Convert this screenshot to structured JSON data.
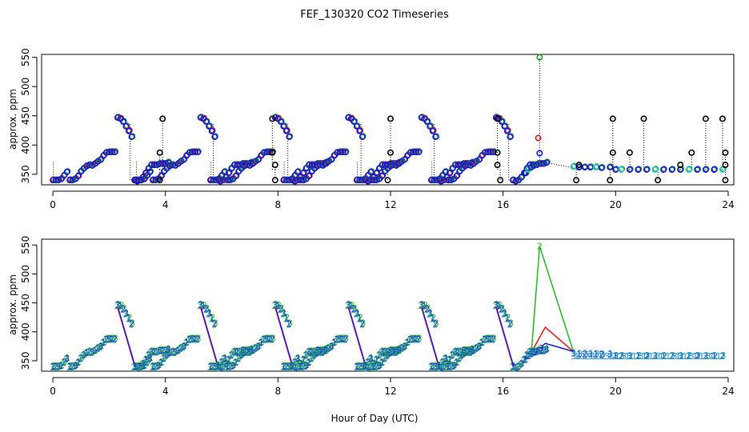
{
  "chart_data": [
    {
      "type": "scatter",
      "title": "FEF_130320  CO2 Timeseries",
      "ylabel": "approx. ppm",
      "xlim": [
        -0.4,
        24.2
      ],
      "ylim": [
        332,
        555
      ],
      "xticks": [
        "0",
        "4",
        "8",
        "12",
        "16",
        "20",
        "24"
      ],
      "yticks": [
        "350",
        "400",
        "450",
        "500",
        "550"
      ],
      "colors": {
        "frame": "#000000",
        "points": "#1414d8",
        "points_alt": "#c81e1e",
        "points_green": "#2a9a2a",
        "points_cyan": "#22cccc",
        "spikes": "#000000"
      },
      "cycle_points": [
        [
          0,
          340
        ],
        [
          0.1,
          340
        ],
        [
          0.2,
          340
        ],
        [
          0.3,
          342
        ],
        [
          0.4,
          348
        ],
        [
          0.5,
          354
        ],
        [
          0.6,
          340
        ],
        [
          0.7,
          340
        ],
        [
          0.8,
          342
        ],
        [
          0.9,
          347
        ],
        [
          1.0,
          355
        ],
        [
          1.1,
          360
        ],
        [
          1.2,
          364
        ],
        [
          1.3,
          366
        ],
        [
          1.4,
          365
        ],
        [
          1.5,
          368
        ],
        [
          1.6,
          372
        ],
        [
          1.7,
          375
        ],
        [
          1.8,
          382
        ],
        [
          1.9,
          387
        ],
        [
          2.0,
          388
        ],
        [
          2.1,
          388
        ],
        [
          2.2,
          388
        ],
        [
          2.3,
          447
        ],
        [
          2.4,
          445
        ],
        [
          2.5,
          440
        ],
        [
          2.6,
          432
        ],
        [
          2.7,
          424
        ],
        [
          2.8,
          414
        ],
        [
          2.9,
          340
        ],
        [
          3.0,
          338
        ],
        [
          3.1,
          340
        ],
        [
          3.2,
          345
        ],
        [
          3.3,
          352
        ],
        [
          3.4,
          360
        ],
        [
          3.5,
          366
        ],
        [
          3.6,
          366
        ],
        [
          3.7,
          366
        ],
        [
          3.8,
          368
        ],
        [
          3.9,
          368
        ],
        [
          4.0,
          368
        ],
        [
          4.1,
          370
        ]
      ],
      "cycle_offsets": [
        0,
        2.95,
        5.6,
        8.2,
        10.8,
        13.45
      ],
      "tail_points": [
        [
          16.8,
          352
        ],
        [
          16.9,
          358
        ],
        [
          17.0,
          362
        ],
        [
          17.1,
          365
        ],
        [
          17.2,
          366
        ],
        [
          18.5,
          363
        ],
        [
          18.7,
          362
        ],
        [
          18.9,
          362
        ],
        [
          19.1,
          362
        ],
        [
          19.3,
          362
        ],
        [
          19.5,
          361
        ],
        [
          19.8,
          362
        ],
        [
          20.0,
          358
        ],
        [
          20.2,
          358
        ],
        [
          20.5,
          358
        ],
        [
          20.8,
          358
        ],
        [
          21.1,
          358
        ],
        [
          21.4,
          358
        ],
        [
          21.7,
          358
        ],
        [
          22.0,
          358
        ],
        [
          22.3,
          358
        ],
        [
          22.6,
          358
        ],
        [
          22.9,
          358
        ],
        [
          23.2,
          358
        ],
        [
          23.5,
          358
        ],
        [
          23.8,
          358
        ]
      ],
      "spike_points": [
        [
          3.9,
          445
        ],
        [
          3.8,
          387
        ],
        [
          3.8,
          340
        ],
        [
          7.8,
          445
        ],
        [
          7.8,
          387
        ],
        [
          7.9,
          366
        ],
        [
          7.9,
          340
        ],
        [
          12.0,
          445
        ],
        [
          12.0,
          387
        ],
        [
          11.9,
          340
        ],
        [
          15.8,
          445
        ],
        [
          15.8,
          387
        ],
        [
          15.8,
          366
        ],
        [
          15.9,
          340
        ],
        [
          18.7,
          366
        ],
        [
          18.6,
          340
        ],
        [
          19.9,
          445
        ],
        [
          19.9,
          387
        ],
        [
          19.8,
          340
        ],
        [
          20.5,
          387
        ],
        [
          21.0,
          445
        ],
        [
          21.5,
          340
        ],
        [
          22.3,
          366
        ],
        [
          22.7,
          387
        ],
        [
          23.2,
          445
        ],
        [
          23.8,
          445
        ],
        [
          23.9,
          387
        ],
        [
          23.9,
          366
        ],
        [
          23.9,
          340
        ]
      ],
      "special_points": [
        {
          "x": 17.3,
          "y": 550,
          "color": "green"
        },
        {
          "x": 17.25,
          "y": 412,
          "color": "red"
        },
        {
          "x": 17.3,
          "y": 386,
          "color": "blue"
        }
      ]
    },
    {
      "type": "scatter",
      "ylabel": "approx. ppm",
      "xlabel": "Hour of Day (UTC)",
      "xlim": [
        -0.4,
        24.2
      ],
      "ylim": [
        332,
        560
      ],
      "xticks": [
        "0",
        "4",
        "8",
        "12",
        "16",
        "20",
        "24"
      ],
      "yticks": [
        "350",
        "400",
        "450",
        "500",
        "550"
      ],
      "marker_labels": [
        "1",
        "2",
        "3"
      ],
      "spike": {
        "label": "2",
        "x": 17.3,
        "y": 548
      },
      "lines": [
        {
          "color": "green",
          "points": [
            [
              17.0,
              360
            ],
            [
              17.3,
              548
            ],
            [
              18.5,
              366
            ]
          ]
        },
        {
          "color": "red",
          "points": [
            [
              17.0,
              364
            ],
            [
              17.5,
              408
            ],
            [
              18.5,
              366
            ]
          ]
        },
        {
          "color": "blue",
          "points": [
            [
              17.0,
              358
            ],
            [
              17.5,
              380
            ],
            [
              18.5,
              366
            ]
          ]
        }
      ]
    }
  ]
}
